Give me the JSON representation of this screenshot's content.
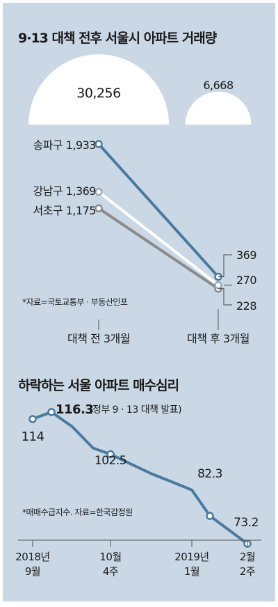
{
  "chart_data": [
    {
      "type": "line",
      "title": "9·13 대책 전후 서울시 아파트 거래량",
      "categories": [
        "대책 전 3개월",
        "대책 후 3개월"
      ],
      "totals": {
        "labels": [
          "30,256",
          "6,668"
        ],
        "values": [
          30256,
          6668
        ]
      },
      "series": [
        {
          "name": "송파구",
          "values": [
            1933,
            369
          ],
          "labels": [
            "1,933",
            "369"
          ],
          "color": "#4a7aa0"
        },
        {
          "name": "강남구",
          "values": [
            1369,
            270
          ],
          "labels": [
            "1,369",
            "270"
          ],
          "color": "#ffffff"
        },
        {
          "name": "서초구",
          "values": [
            1175,
            228
          ],
          "labels": [
            "1,175",
            "228"
          ],
          "color": "#8a8a8a"
        }
      ],
      "source": "*자료=국토교통부 · 부동산인포"
    },
    {
      "type": "line",
      "title": "하락하는 서울 아파트 매수심리",
      "x_ticks": [
        {
          "line1": "2018년",
          "line2": "9월"
        },
        {
          "line1": "10월",
          "line2": "4주"
        },
        {
          "line1": "2019년",
          "line2": "1월"
        },
        {
          "line1": "2월",
          "line2": "2주"
        }
      ],
      "series": [
        {
          "values": [
            114,
            116.3,
            111.5,
            104.5,
            102.5,
            99.2,
            96.0,
            93.3,
            90.8,
            82.3,
            73.2
          ],
          "color": "#4a7aa0"
        }
      ],
      "point_labels": [
        {
          "index": 0,
          "text": "114"
        },
        {
          "index": 1,
          "text": "116.3"
        },
        {
          "index": 4,
          "text": "102.5"
        },
        {
          "index": 9,
          "text": "82.3"
        },
        {
          "index": 10,
          "text": "73.2"
        }
      ],
      "annotation": "(정부 9 · 13 대책 발표)",
      "source": "*매매수급지수. 자료=한국감정원"
    }
  ]
}
